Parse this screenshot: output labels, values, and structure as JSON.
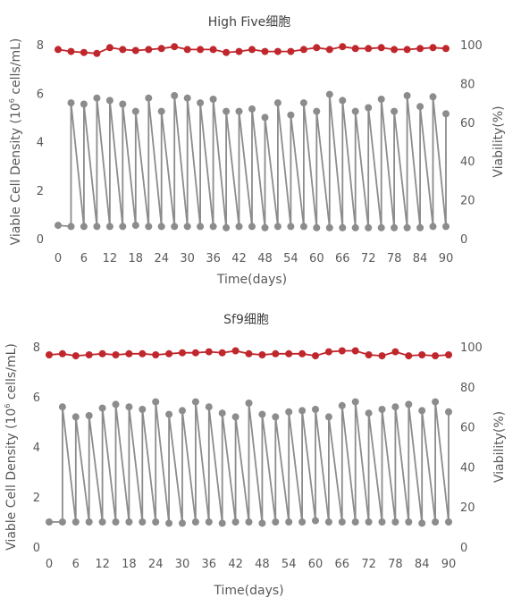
{
  "charts": [
    {
      "title": "High Five细胞",
      "xlabel": "Time(days)",
      "ylabel_left": {
        "pre": "Viable Cell Density (10",
        "sup": "6",
        "post": " cells/mL)"
      },
      "ylabel_right": "Viability(%)"
    },
    {
      "title": "Sf9细胞",
      "xlabel": "Time(days)",
      "ylabel_left": {
        "pre": "Viable Cell Density (10",
        "sup": "6",
        "post": " cells/mL)"
      },
      "ylabel_right": "Viability(%)"
    }
  ],
  "chart_data": [
    {
      "type": "line",
      "title": "High Five细胞",
      "xlabel": "Time(days)",
      "ylabel": "Viable Cell Density (10^6 cells/mL)",
      "y2label": "Viability(%)",
      "xlim": [
        0,
        90
      ],
      "ylim": [
        0,
        8
      ],
      "y2lim": [
        0,
        100
      ],
      "x_ticks": [
        0,
        6,
        12,
        18,
        24,
        30,
        36,
        42,
        48,
        54,
        60,
        66,
        72,
        78,
        84,
        90
      ],
      "y_ticks": [
        0,
        2,
        4,
        6,
        8
      ],
      "y2_ticks": [
        0,
        20,
        40,
        60,
        80,
        100
      ],
      "grid": false,
      "legend": "none",
      "series": [
        {
          "axis": "left",
          "color": "#8c8c8c",
          "x": [
            0,
            3,
            3,
            6,
            6,
            9,
            9,
            12,
            12,
            15,
            15,
            18,
            18,
            21,
            21,
            24,
            24,
            27,
            27,
            30,
            30,
            33,
            33,
            36,
            36,
            39,
            39,
            42,
            42,
            45,
            45,
            48,
            48,
            51,
            51,
            54,
            54,
            57,
            57,
            60,
            60,
            63,
            63,
            66,
            66,
            69,
            69,
            72,
            72,
            75,
            75,
            78,
            78,
            81,
            81,
            84,
            84,
            87,
            87,
            90,
            90
          ],
          "values": [
            0.55,
            0.5,
            5.6,
            0.5,
            5.55,
            0.5,
            5.8,
            0.5,
            5.7,
            0.5,
            5.55,
            0.55,
            5.25,
            0.5,
            5.8,
            0.5,
            5.25,
            0.5,
            5.9,
            0.5,
            5.8,
            0.5,
            5.6,
            0.5,
            5.75,
            0.45,
            5.25,
            0.5,
            5.25,
            0.5,
            5.35,
            0.45,
            5.0,
            0.5,
            5.6,
            0.5,
            5.1,
            0.5,
            5.6,
            0.45,
            5.25,
            0.45,
            5.95,
            0.45,
            5.7,
            0.45,
            5.25,
            0.45,
            5.4,
            0.45,
            5.75,
            0.45,
            5.25,
            0.45,
            5.9,
            0.45,
            5.45,
            0.5,
            5.85,
            0.5,
            5.15
          ]
        },
        {
          "axis": "right",
          "color": "#c0272d",
          "x": [
            0,
            3,
            6,
            9,
            12,
            15,
            18,
            21,
            24,
            27,
            30,
            33,
            36,
            39,
            42,
            45,
            48,
            51,
            54,
            57,
            60,
            63,
            66,
            69,
            72,
            75,
            78,
            81,
            84,
            87,
            90
          ],
          "values": [
            97.5,
            96.5,
            96,
            95.5,
            98.5,
            97.5,
            97,
            97.5,
            98,
            99,
            97.5,
            97.5,
            97.5,
            96,
            96.5,
            97.5,
            96.5,
            96.5,
            96.5,
            97.5,
            98.5,
            97.5,
            99,
            98,
            98,
            98.5,
            97.5,
            97.5,
            98,
            98.5,
            98
          ]
        }
      ]
    },
    {
      "type": "line",
      "title": "Sf9细胞",
      "xlabel": "Time(days)",
      "ylabel": "Viable Cell Density (10^6 cells/mL)",
      "y2label": "Viability(%)",
      "xlim": [
        0,
        90
      ],
      "ylim": [
        0,
        8
      ],
      "y2lim": [
        0,
        100
      ],
      "x_ticks": [
        0,
        6,
        12,
        18,
        24,
        30,
        36,
        42,
        48,
        54,
        60,
        66,
        72,
        78,
        84,
        90
      ],
      "y_ticks": [
        0,
        2,
        4,
        6,
        8
      ],
      "y2_ticks": [
        0,
        20,
        40,
        60,
        80,
        100
      ],
      "grid": false,
      "legend": "none",
      "series": [
        {
          "axis": "left",
          "color": "#8c8c8c",
          "x": [
            0,
            3,
            3,
            6,
            6,
            9,
            9,
            12,
            12,
            15,
            15,
            18,
            18,
            21,
            21,
            24,
            24,
            27,
            27,
            30,
            30,
            33,
            33,
            36,
            36,
            39,
            39,
            42,
            42,
            45,
            45,
            48,
            48,
            51,
            51,
            54,
            54,
            57,
            57,
            60,
            60,
            63,
            63,
            66,
            66,
            69,
            69,
            72,
            72,
            75,
            75,
            78,
            78,
            81,
            81,
            84,
            84,
            87,
            87,
            90,
            90
          ],
          "values": [
            1.0,
            1.0,
            5.6,
            1.0,
            5.2,
            1.0,
            5.25,
            1.0,
            5.55,
            1.0,
            5.7,
            1.0,
            5.6,
            1.0,
            5.5,
            1.0,
            5.8,
            0.95,
            5.3,
            0.95,
            5.45,
            1.0,
            5.8,
            1.0,
            5.6,
            0.95,
            5.35,
            1.0,
            5.2,
            1.0,
            5.75,
            0.95,
            5.3,
            1.0,
            5.2,
            1.0,
            5.4,
            1.0,
            5.45,
            1.05,
            5.5,
            1.0,
            5.2,
            1.0,
            5.65,
            1.0,
            5.8,
            1.0,
            5.35,
            1.0,
            5.5,
            1.0,
            5.6,
            1.0,
            5.7,
            0.95,
            5.45,
            1.0,
            5.8,
            1.0,
            5.4
          ]
        },
        {
          "axis": "right",
          "color": "#c0272d",
          "x": [
            0,
            3,
            6,
            9,
            12,
            15,
            18,
            21,
            24,
            27,
            30,
            33,
            36,
            39,
            42,
            45,
            48,
            51,
            54,
            57,
            60,
            63,
            66,
            69,
            72,
            75,
            78,
            81,
            84,
            87,
            90
          ],
          "values": [
            96,
            96.5,
            95.5,
            96,
            96.5,
            96,
            96.5,
            96.5,
            96,
            96.5,
            97,
            97,
            97.5,
            97,
            98,
            96.5,
            96,
            96.5,
            96.5,
            96.5,
            95.5,
            97.5,
            98,
            98,
            96,
            95.5,
            97.5,
            95.5,
            96,
            95.5,
            96
          ]
        }
      ]
    }
  ]
}
